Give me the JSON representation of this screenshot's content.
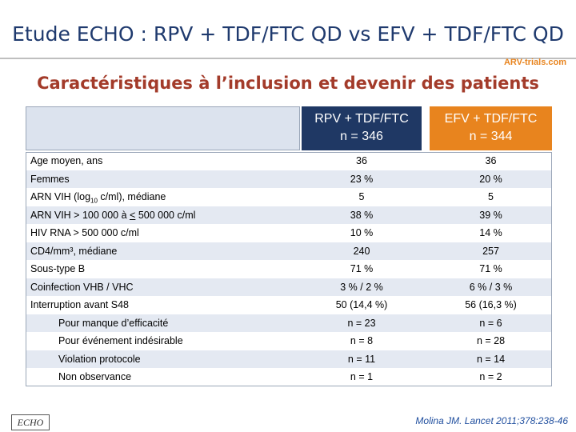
{
  "header": {
    "title": "Etude ECHO : RPV + TDF/FTC QD vs EFV + TDF/FTC QD",
    "logo": "ARV-trials.com"
  },
  "subtitle": "Caractéristiques à l’inclusion et devenir des patients",
  "table": {
    "columns": [
      {
        "name": "RPV + TDF/FTC",
        "n": "n = 346",
        "color": "#1f3864"
      },
      {
        "name": "EFV + TDF/FTC",
        "n": "n = 344",
        "color": "#e8841e"
      }
    ],
    "rows": [
      {
        "label": "Age moyen, ans",
        "values": [
          "36",
          "36"
        ]
      },
      {
        "label": "Femmes",
        "values": [
          "23 %",
          "20 %"
        ]
      },
      {
        "label": [
          "ARN VIH (log",
          "10",
          " c/ml), médiane"
        ],
        "label_style": "subscript",
        "values": [
          "5",
          "5"
        ]
      },
      {
        "label": [
          "ARN VIH > 100 000 à ",
          "<",
          " 500 000 c/ml"
        ],
        "label_style": "underline",
        "values": [
          "38 %",
          "39 %"
        ]
      },
      {
        "label": "HIV RNA > 500 000 c/ml",
        "values": [
          "10 %",
          "14 %"
        ]
      },
      {
        "label": "CD4/mm³, médiane",
        "values": [
          "240",
          "257"
        ]
      },
      {
        "label": "Sous-type B",
        "values": [
          "71 %",
          "71 %"
        ]
      },
      {
        "label": "Coinfection VHB / VHC",
        "values": [
          "3 % / 2 %",
          "6 % / 3 %"
        ]
      },
      {
        "label": "Interruption avant S48",
        "values": [
          "50 (14,4 %)",
          "56 (16,3 %)"
        ],
        "subrows": [
          {
            "label": "Pour manque d’efficacité",
            "values": [
              "n = 23",
              "n = 6"
            ]
          },
          {
            "label": "Pour événement indésirable",
            "values": [
              "n = 8",
              "n = 28"
            ]
          },
          {
            "label": "Violation protocole",
            "values": [
              "n = 11",
              "n = 14"
            ]
          },
          {
            "label": "Non observance",
            "values": [
              "n = 1",
              "n = 2"
            ]
          }
        ]
      }
    ]
  },
  "footer": {
    "study": "ECHO",
    "citation": "Molina JM. Lancet 2011;378:238-46"
  }
}
